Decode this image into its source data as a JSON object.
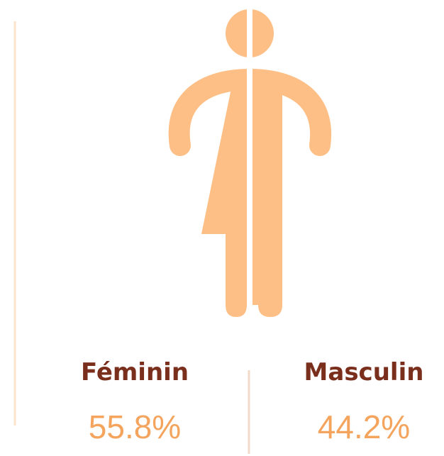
{
  "stats": [
    {
      "label": "Féminin",
      "value": "55.8%"
    },
    {
      "label": "Masculin",
      "value": "44.2%"
    }
  ]
}
